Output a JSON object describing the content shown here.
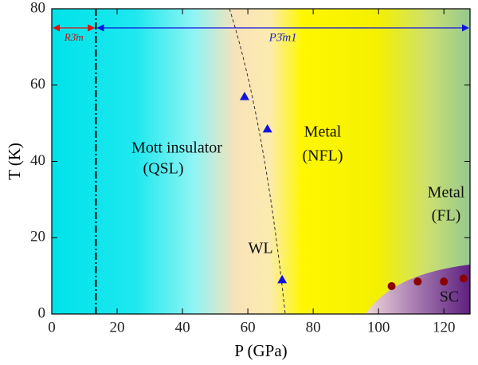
{
  "chart_data": {
    "type": "scatter",
    "xlabel": "P (GPa)",
    "ylabel": "T (K)",
    "xlim": [
      0,
      128
    ],
    "ylim": [
      0,
      80
    ],
    "xticks": [
      0,
      20,
      40,
      60,
      80,
      100,
      120
    ],
    "yticks": [
      0,
      20,
      40,
      60,
      80
    ],
    "phase_boundary": 13.5,
    "phases": [
      "R3̄m",
      "P3̄m1"
    ],
    "annotations": [
      "Mott insulator",
      "(QSL)",
      "Metal",
      "(NFL)",
      "Metal",
      "(FL)",
      "WL",
      "SC"
    ],
    "series": [
      {
        "color": "#1010e0",
        "marker": "triangle",
        "x": [
          59,
          66,
          70.5
        ],
        "values": [
          57,
          48.5,
          9
        ]
      },
      {
        "color": "#8b0000",
        "marker": "circle",
        "x": [
          104,
          112,
          120,
          126
        ],
        "values": [
          7.3,
          8.5,
          8.5,
          9.3
        ]
      }
    ]
  }
}
